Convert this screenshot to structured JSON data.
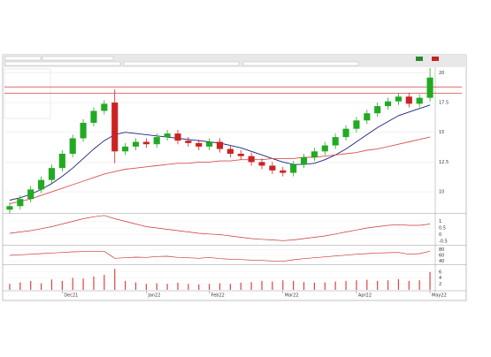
{
  "chart_data": {
    "type": "candlestick",
    "categories": [
      null,
      null,
      null,
      null,
      null,
      "Dec21",
      null,
      null,
      null,
      null,
      null,
      null,
      null,
      "Jan22",
      null,
      null,
      null,
      null,
      null,
      "Feb22",
      null,
      null,
      null,
      null,
      null,
      null,
      "Mar22",
      null,
      null,
      null,
      null,
      null,
      null,
      "Apr22",
      null,
      null,
      null,
      null,
      null,
      null,
      "May22"
    ],
    "open": [
      8.5,
      8.8,
      9.4,
      10.2,
      11.0,
      12.0,
      13.2,
      14.5,
      15.8,
      16.8,
      17.5,
      13.4,
      13.8,
      14.2,
      14.0,
      14.6,
      14.9,
      14.3,
      14.1,
      13.8,
      14.2,
      13.6,
      13.2,
      13.0,
      12.5,
      12.2,
      11.8,
      11.6,
      12.3,
      12.9,
      13.4,
      13.9,
      14.6,
      15.3,
      16.0,
      16.6,
      17.2,
      17.6,
      18.0,
      17.4,
      17.9
    ],
    "high": [
      9.1,
      9.7,
      10.5,
      11.3,
      12.3,
      13.5,
      14.8,
      16.1,
      17.1,
      17.7,
      18.6,
      14.1,
      14.5,
      14.5,
      14.9,
      15.2,
      15.2,
      14.6,
      14.4,
      14.5,
      14.5,
      13.9,
      13.5,
      13.3,
      12.8,
      12.5,
      12.1,
      12.6,
      13.2,
      13.7,
      14.2,
      14.9,
      15.6,
      16.3,
      16.9,
      17.5,
      17.9,
      18.3,
      18.3,
      18.2,
      20.4
    ],
    "low": [
      8.2,
      8.5,
      9.1,
      9.9,
      10.7,
      11.7,
      12.9,
      14.2,
      15.5,
      16.5,
      12.4,
      13.1,
      13.5,
      13.7,
      13.7,
      14.3,
      14.0,
      13.8,
      13.5,
      13.5,
      13.3,
      12.9,
      12.7,
      12.2,
      11.9,
      11.5,
      11.3,
      11.3,
      12.0,
      12.6,
      13.1,
      13.6,
      14.3,
      15.0,
      15.7,
      16.3,
      16.9,
      17.3,
      17.1,
      17.1,
      17.6
    ],
    "close": [
      8.8,
      9.4,
      10.2,
      11.0,
      12.0,
      13.2,
      14.5,
      15.8,
      16.8,
      17.4,
      13.4,
      13.8,
      14.2,
      14.0,
      14.6,
      14.9,
      14.3,
      14.1,
      13.8,
      14.2,
      13.6,
      13.2,
      13.0,
      12.5,
      12.2,
      11.8,
      11.6,
      12.3,
      12.9,
      13.4,
      13.9,
      14.6,
      15.3,
      16.0,
      16.6,
      17.2,
      17.6,
      18.0,
      17.4,
      17.9,
      19.6
    ],
    "up_color": "#22aa22",
    "down_color": "#cc2222",
    "series": [
      {
        "color": "#1a237e",
        "values": [
          9.3,
          9.5,
          9.8,
          10.2,
          10.7,
          11.3,
          12.0,
          12.8,
          13.6,
          14.3,
          14.8,
          15.0,
          14.9,
          14.8,
          14.7,
          14.6,
          14.5,
          14.4,
          14.3,
          14.2,
          14.1,
          13.9,
          13.7,
          13.4,
          13.1,
          12.8,
          12.5,
          12.3,
          12.3,
          12.4,
          12.7,
          13.1,
          13.6,
          14.2,
          14.8,
          15.4,
          15.9,
          16.4,
          16.7,
          17.0,
          17.3
        ]
      },
      {
        "color": "#d9534f",
        "values": [
          9.0,
          9.2,
          9.4,
          9.7,
          10.0,
          10.3,
          10.6,
          10.9,
          11.2,
          11.5,
          11.7,
          11.9,
          12.0,
          12.1,
          12.2,
          12.3,
          12.4,
          12.4,
          12.5,
          12.5,
          12.6,
          12.6,
          12.7,
          12.7,
          12.7,
          12.8,
          12.8,
          12.8,
          12.9,
          12.9,
          13.0,
          13.1,
          13.2,
          13.3,
          13.5,
          13.6,
          13.8,
          14.0,
          14.2,
          14.4,
          14.6
        ]
      }
    ],
    "hlines": [
      18.8,
      18.3
    ],
    "ylim": [
      8.3,
      20.4
    ],
    "yticks": [
      10,
      12.5,
      15,
      17.5,
      20
    ],
    "panels": [
      {
        "type": "line",
        "color": "#cc3333",
        "ylim": [
          -0.7,
          1.5
        ],
        "yticks": [
          -0.5,
          0,
          0.5,
          1
        ],
        "values": [
          0.1,
          0.2,
          0.3,
          0.45,
          0.6,
          0.8,
          1.0,
          1.2,
          1.35,
          1.45,
          1.2,
          1.0,
          0.8,
          0.6,
          0.5,
          0.4,
          0.3,
          0.2,
          0.1,
          0.05,
          0,
          -0.1,
          -0.2,
          -0.3,
          -0.35,
          -0.4,
          -0.45,
          -0.4,
          -0.3,
          -0.2,
          -0.1,
          0.05,
          0.2,
          0.35,
          0.5,
          0.6,
          0.7,
          0.75,
          0.7,
          0.7,
          0.8
        ]
      },
      {
        "type": "line",
        "color": "#cc3333",
        "ylim": [
          30,
          90
        ],
        "yticks": [
          40,
          60,
          80
        ],
        "values": [
          60,
          62,
          64,
          66,
          68,
          70,
          72,
          73,
          74,
          74,
          50,
          52,
          54,
          53,
          56,
          57,
          53,
          52,
          50,
          53,
          49,
          47,
          46,
          44,
          43,
          41,
          40,
          45,
          49,
          52,
          55,
          58,
          61,
          64,
          66,
          68,
          69,
          70,
          64,
          66,
          74
        ]
      },
      {
        "type": "bar",
        "color": "#dd4444",
        "ylim": [
          0,
          8
        ],
        "yticks": [
          2,
          4,
          6
        ],
        "values": [
          2,
          2.5,
          3,
          2.2,
          3.5,
          3,
          4,
          3.8,
          4.5,
          5,
          7,
          3,
          2.5,
          2,
          2.2,
          2,
          2.4,
          2,
          1.8,
          2,
          2.2,
          2,
          2.4,
          2.6,
          3,
          2.8,
          3.2,
          3,
          2.6,
          2.4,
          2.5,
          2.8,
          3,
          3.2,
          3.4,
          3,
          3.2,
          3.6,
          3,
          3.2,
          6
        ]
      }
    ]
  }
}
